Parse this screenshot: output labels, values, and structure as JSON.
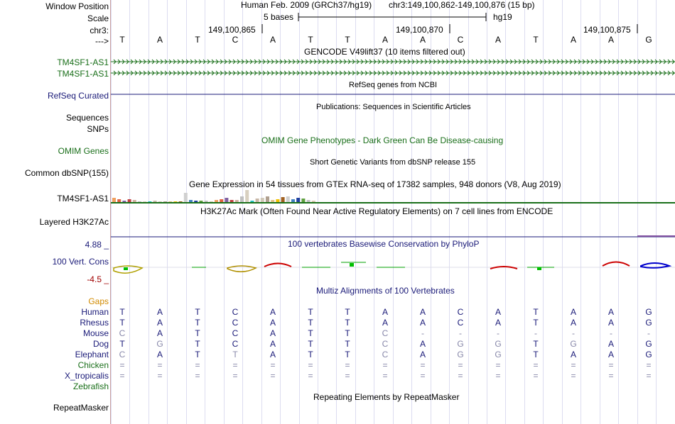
{
  "header": {
    "window_position_label": "Window Position",
    "scale_label": "Scale",
    "chr_label": "chr3:",
    "arrow_label": "--->",
    "assembly_text": "Human Feb. 2009 (GRCh37/hg19)",
    "position_text": "chr3:149,100,862-149,100,876 (15 bp)",
    "scale_text": "5 bases",
    "db_text": "hg19",
    "coords": [
      "149,100,865",
      "149,100,870",
      "149,100,875"
    ]
  },
  "sequence": [
    "T",
    "A",
    "T",
    "C",
    "A",
    "T",
    "T",
    "A",
    "A",
    "C",
    "A",
    "T",
    "A",
    "A",
    "G"
  ],
  "tracks": {
    "gencode": {
      "title": "GENCODE V49lift37 (10 items filtered out)",
      "items": [
        "TM4SF1-AS1",
        "TM4SF1-AS1"
      ]
    },
    "refseq": {
      "title": "RefSeq genes from NCBI",
      "label": "RefSeq Curated"
    },
    "publications": {
      "title": "Publications: Sequences in Scientific Articles",
      "label1": "Sequences",
      "label2": "SNPs"
    },
    "omim": {
      "title": "OMIM Gene Phenotypes - Dark Green Can Be Disease-causing",
      "label": "OMIM Genes"
    },
    "dbsnp": {
      "title": "Short Genetic Variants from dbSNP release 155",
      "label": "Common dbSNP(155)"
    },
    "gtex": {
      "title": "Gene Expression in 54 tissues from GTEx RNA-seq of 17382 samples, 948 donors (V8, Aug 2019)",
      "label": "TM4SF1-AS1"
    },
    "h3k27ac": {
      "title": "H3K27Ac Mark (Often Found Near Active Regulatory Elements) on 7 cell lines from ENCODE",
      "label": "Layered H3K27Ac"
    },
    "phylop": {
      "title": "100 vertebrates Basewise Conservation by PhyloP",
      "label": "100 Vert. Cons",
      "max": "4.88 _",
      "min": "-4.5 _"
    },
    "multiz": {
      "title": "Multiz Alignments of 100 Vertebrates",
      "gaps_label": "Gaps"
    },
    "repeatmasker": {
      "title": "Repeating Elements by RepeatMasker",
      "label": "RepeatMasker"
    }
  },
  "alignment": [
    {
      "species": "Human",
      "bases": [
        "T",
        "A",
        "T",
        "C",
        "A",
        "T",
        "T",
        "A",
        "A",
        "C",
        "A",
        "T",
        "A",
        "A",
        "G"
      ]
    },
    {
      "species": "Rhesus",
      "bases": [
        "T",
        "A",
        "T",
        "C",
        "A",
        "T",
        "T",
        "A",
        "A",
        "C",
        "A",
        "T",
        "A",
        "A",
        "G"
      ]
    },
    {
      "species": "Mouse",
      "bases": [
        "C",
        "A",
        "T",
        "C",
        "A",
        "T",
        "T",
        "C",
        "-",
        "-",
        "-",
        "-",
        "-",
        "-",
        "-"
      ]
    },
    {
      "species": "Dog",
      "bases": [
        "T",
        "G",
        "T",
        "C",
        "A",
        "T",
        "T",
        "C",
        "A",
        "G",
        "G",
        "T",
        "G",
        "A",
        "G"
      ]
    },
    {
      "species": "Elephant",
      "bases": [
        "C",
        "A",
        "T",
        "T",
        "A",
        "T",
        "T",
        "C",
        "A",
        "G",
        "G",
        "T",
        "A",
        "A",
        "G"
      ]
    },
    {
      "species": "Chicken",
      "bases": [
        "=",
        "=",
        "=",
        "=",
        "=",
        "=",
        "=",
        "=",
        "=",
        "=",
        "=",
        "=",
        "=",
        "=",
        "="
      ]
    },
    {
      "species": "X_tropicalis",
      "bases": [
        "=",
        "=",
        "=",
        "=",
        "=",
        "=",
        "=",
        "=",
        "=",
        "=",
        "=",
        "=",
        "=",
        "=",
        "="
      ]
    },
    {
      "species": "Zebrafish",
      "bases": [
        "",
        "",
        "",
        "",
        "",
        "",
        "",
        "",
        "",
        "",
        "",
        "",
        "",
        "",
        ""
      ]
    }
  ],
  "colors": {
    "green": "#1a6f1a",
    "navy": "#1a1a78",
    "orange": "#d18a00",
    "conservation_red": "#cc0000",
    "conservation_blue": "#0000cc"
  }
}
